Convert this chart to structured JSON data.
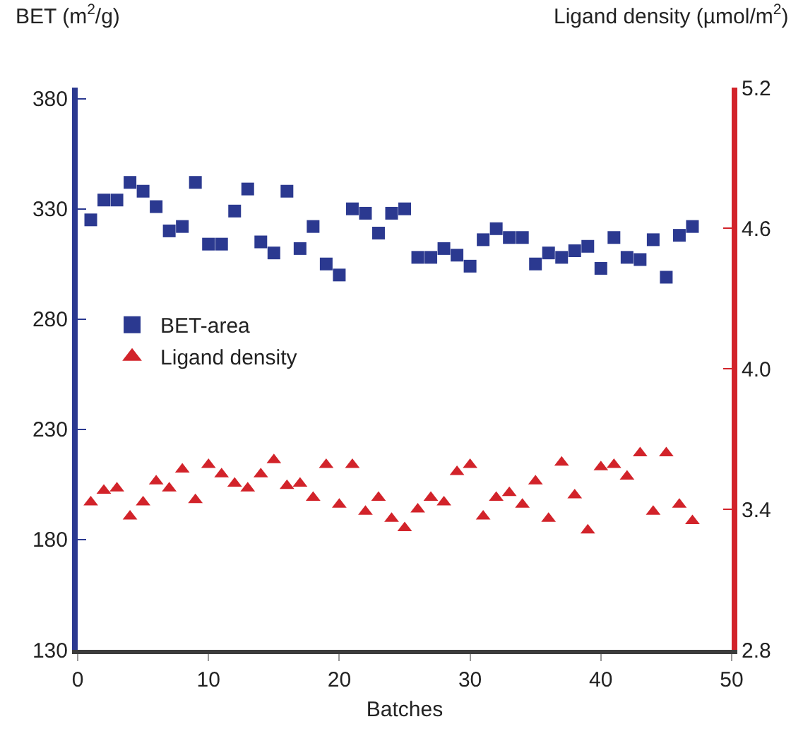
{
  "chart_data": {
    "type": "scatter",
    "xlabel": "Batches",
    "ylabel": "BET (m$^{2}$/g)",
    "y2label": "Ligand density (µmol/m$^{2}$)",
    "x": [
      1,
      2,
      3,
      4,
      5,
      6,
      7,
      8,
      9,
      10,
      11,
      12,
      13,
      14,
      15,
      16,
      17,
      18,
      19,
      20,
      21,
      22,
      23,
      24,
      25,
      26,
      27,
      28,
      29,
      30,
      31,
      32,
      33,
      34,
      35,
      36,
      37,
      38,
      39,
      40,
      41,
      42,
      43,
      44,
      45,
      46,
      47
    ],
    "series": [
      {
        "name": "BET-area",
        "color": "#2b3990",
        "marker": "square",
        "values": [
          325,
          334,
          334,
          342,
          338,
          331,
          320,
          322,
          342,
          314,
          314,
          329,
          339,
          315,
          310,
          338,
          312,
          322,
          305,
          300,
          330,
          328,
          319,
          328,
          330,
          308,
          308,
          312,
          309,
          304,
          316,
          321,
          317,
          317,
          305,
          310,
          308,
          311,
          313,
          303,
          317,
          308,
          307,
          316,
          299,
          318,
          322
        ]
      },
      {
        "name": "Ligand density",
        "color": "#d2232a",
        "marker": "triangle",
        "axis": "y2",
        "values": [
          3.43,
          3.48,
          3.49,
          3.37,
          3.43,
          3.52,
          3.49,
          3.57,
          3.44,
          3.59,
          3.55,
          3.51,
          3.49,
          3.55,
          3.61,
          3.5,
          3.51,
          3.45,
          3.59,
          3.42,
          3.59,
          3.39,
          3.45,
          3.36,
          3.32,
          3.4,
          3.45,
          3.43,
          3.56,
          3.59,
          3.37,
          3.45,
          3.47,
          3.42,
          3.52,
          3.36,
          3.6,
          3.46,
          3.31,
          3.58,
          3.59,
          3.54,
          3.64,
          3.39,
          3.64,
          3.42,
          3.35
        ]
      }
    ],
    "xlim": [
      0,
      50
    ],
    "xticks": [
      0,
      10,
      20,
      30,
      40,
      50
    ],
    "ylim": [
      130,
      385
    ],
    "yticks": [
      130,
      180,
      230,
      280,
      330,
      380
    ],
    "y2lim": [
      2.8,
      5.2
    ],
    "y2ticks": [
      2.8,
      3.4,
      {
        "value": 4,
        "label": "4.0"
      },
      4.6,
      5.2
    ],
    "grid": false,
    "legend": "left"
  }
}
